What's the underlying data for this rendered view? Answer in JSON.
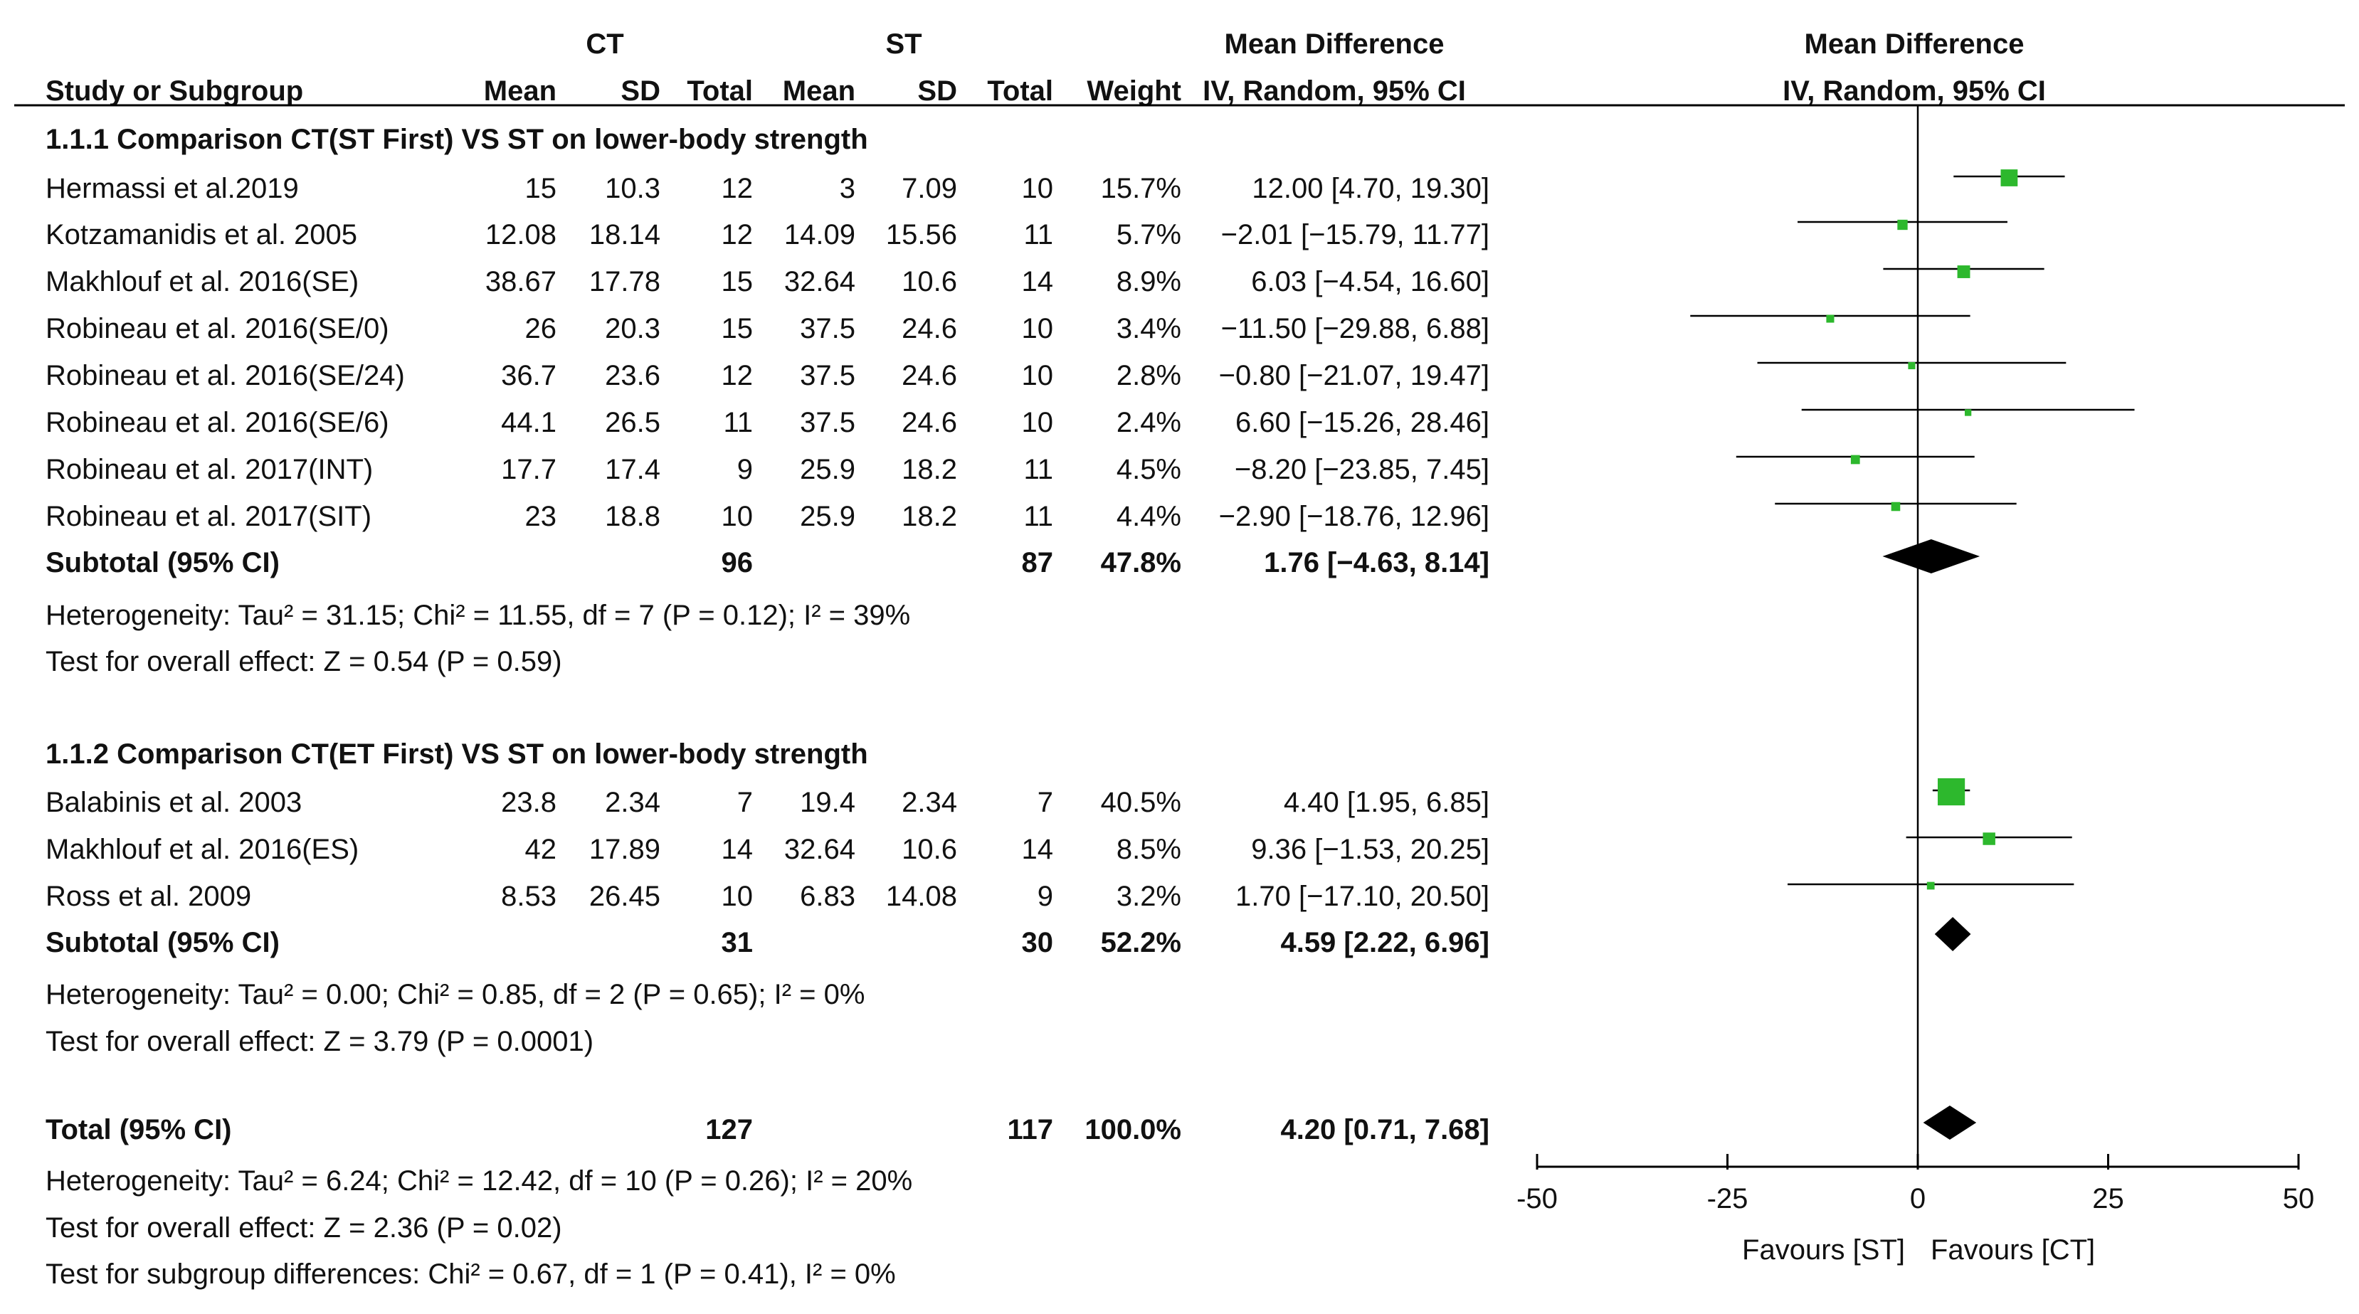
{
  "header": {
    "ct_group": "CT",
    "st_group": "ST",
    "md_title": "Mean Difference",
    "md_method": "IV, Random, 95% CI",
    "study_col": "Study or Subgroup",
    "mean": "Mean",
    "sd": "SD",
    "total": "Total",
    "weight": "Weight",
    "plot_title": "Mean Difference",
    "plot_method": "IV, Random, 95% CI"
  },
  "subgroups": [
    {
      "title": "1.1.1 Comparison CT(ST First) VS ST on lower-body strength",
      "studies": [
        {
          "name": "Hermassi et al.2019",
          "ct_mean": "15",
          "ct_sd": "10.3",
          "ct_total": "12",
          "st_mean": "3",
          "st_sd": "7.09",
          "st_total": "10",
          "weight": "15.7%",
          "ci_text": "12.00 [4.70, 19.30]"
        },
        {
          "name": "Kotzamanidis et al. 2005",
          "ct_mean": "12.08",
          "ct_sd": "18.14",
          "ct_total": "12",
          "st_mean": "14.09",
          "st_sd": "15.56",
          "st_total": "11",
          "weight": "5.7%",
          "ci_text": "−2.01 [−15.79, 11.77]"
        },
        {
          "name": "Makhlouf et al. 2016(SE)",
          "ct_mean": "38.67",
          "ct_sd": "17.78",
          "ct_total": "15",
          "st_mean": "32.64",
          "st_sd": "10.6",
          "st_total": "14",
          "weight": "8.9%",
          "ci_text": "6.03 [−4.54, 16.60]"
        },
        {
          "name": "Robineau et al. 2016(SE/0)",
          "ct_mean": "26",
          "ct_sd": "20.3",
          "ct_total": "15",
          "st_mean": "37.5",
          "st_sd": "24.6",
          "st_total": "10",
          "weight": "3.4%",
          "ci_text": "−11.50 [−29.88, 6.88]"
        },
        {
          "name": "Robineau et al. 2016(SE/24)",
          "ct_mean": "36.7",
          "ct_sd": "23.6",
          "ct_total": "12",
          "st_mean": "37.5",
          "st_sd": "24.6",
          "st_total": "10",
          "weight": "2.8%",
          "ci_text": "−0.80 [−21.07, 19.47]"
        },
        {
          "name": "Robineau et al. 2016(SE/6)",
          "ct_mean": "44.1",
          "ct_sd": "26.5",
          "ct_total": "11",
          "st_mean": "37.5",
          "st_sd": "24.6",
          "st_total": "10",
          "weight": "2.4%",
          "ci_text": "6.60 [−15.26, 28.46]"
        },
        {
          "name": "Robineau et al. 2017(INT)",
          "ct_mean": "17.7",
          "ct_sd": "17.4",
          "ct_total": "9",
          "st_mean": "25.9",
          "st_sd": "18.2",
          "st_total": "11",
          "weight": "4.5%",
          "ci_text": "−8.20 [−23.85, 7.45]"
        },
        {
          "name": "Robineau et al. 2017(SIT)",
          "ct_mean": "23",
          "ct_sd": "18.8",
          "ct_total": "10",
          "st_mean": "25.9",
          "st_sd": "18.2",
          "st_total": "11",
          "weight": "4.4%",
          "ci_text": "−2.90 [−18.76, 12.96]"
        }
      ],
      "subtotal": {
        "label": "Subtotal (95% CI)",
        "ct_total": "96",
        "st_total": "87",
        "weight": "47.8%",
        "ci_text": "1.76 [−4.63, 8.14]"
      },
      "heterogeneity": "Heterogeneity: Tau² = 31.15; Chi² = 11.55, df = 7 (P = 0.12); I² = 39%",
      "overall": "Test for overall effect: Z = 0.54 (P = 0.59)"
    },
    {
      "title": "1.1.2 Comparison CT(ET First) VS ST on lower-body strength",
      "studies": [
        {
          "name": "Balabinis et al. 2003",
          "ct_mean": "23.8",
          "ct_sd": "2.34",
          "ct_total": "7",
          "st_mean": "19.4",
          "st_sd": "2.34",
          "st_total": "7",
          "weight": "40.5%",
          "ci_text": "4.40 [1.95, 6.85]"
        },
        {
          "name": "Makhlouf et al. 2016(ES)",
          "ct_mean": "42",
          "ct_sd": "17.89",
          "ct_total": "14",
          "st_mean": "32.64",
          "st_sd": "10.6",
          "st_total": "14",
          "weight": "8.5%",
          "ci_text": "9.36 [−1.53, 20.25]"
        },
        {
          "name": "Ross et al. 2009",
          "ct_mean": "8.53",
          "ct_sd": "26.45",
          "ct_total": "10",
          "st_mean": "6.83",
          "st_sd": "14.08",
          "st_total": "9",
          "weight": "3.2%",
          "ci_text": "1.70 [−17.10, 20.50]"
        }
      ],
      "subtotal": {
        "label": "Subtotal (95% CI)",
        "ct_total": "31",
        "st_total": "30",
        "weight": "52.2%",
        "ci_text": "4.59 [2.22, 6.96]"
      },
      "heterogeneity": "Heterogeneity: Tau² = 0.00; Chi² = 0.85, df = 2 (P = 0.65); I² = 0%",
      "overall": "Test for overall effect: Z = 3.79 (P = 0.0001)"
    }
  ],
  "total": {
    "label": "Total (95% CI)",
    "ct_total": "127",
    "st_total": "117",
    "weight": "100.0%",
    "ci_text": "4.20 [0.71, 7.68]"
  },
  "total_heterogeneity": "Heterogeneity: Tau² = 6.24; Chi² = 12.42, df = 10 (P = 0.26); I² = 20%",
  "total_overall": "Test for overall effect: Z = 2.36 (P = 0.02)",
  "subgroup_differences": "Test for subgroup differences: Chi² = 0.67, df = 1 (P = 0.41), I² = 0%",
  "chart_data": {
    "type": "forest",
    "title": "Mean Difference",
    "subtitle": "IV, Random, 95% CI",
    "xlim": [
      -50,
      50
    ],
    "xticks": [
      -50,
      -25,
      0,
      25,
      50
    ],
    "xtick_labels": [
      "-50",
      "-25",
      "0",
      "25",
      "50"
    ],
    "favours_left": "Favours [ST]",
    "favours_right": "Favours [CT]",
    "study_color": "#2db82d",
    "summary_color": "#000000",
    "studies": [
      {
        "name": "Hermassi et al.2019",
        "md": 12.0,
        "lo": 4.7,
        "hi": 19.3,
        "weight": 15.7
      },
      {
        "name": "Kotzamanidis et al. 2005",
        "md": -2.01,
        "lo": -15.79,
        "hi": 11.77,
        "weight": 5.7
      },
      {
        "name": "Makhlouf et al. 2016(SE)",
        "md": 6.03,
        "lo": -4.54,
        "hi": 16.6,
        "weight": 8.9
      },
      {
        "name": "Robineau et al. 2016(SE/0)",
        "md": -11.5,
        "lo": -29.88,
        "hi": 6.88,
        "weight": 3.4
      },
      {
        "name": "Robineau et al. 2016(SE/24)",
        "md": -0.8,
        "lo": -21.07,
        "hi": 19.47,
        "weight": 2.8
      },
      {
        "name": "Robineau et al. 2016(SE/6)",
        "md": 6.6,
        "lo": -15.26,
        "hi": 28.46,
        "weight": 2.4
      },
      {
        "name": "Robineau et al. 2017(INT)",
        "md": -8.2,
        "lo": -23.85,
        "hi": 7.45,
        "weight": 4.5
      },
      {
        "name": "Robineau et al. 2017(SIT)",
        "md": -2.9,
        "lo": -18.76,
        "hi": 12.96,
        "weight": 4.4
      },
      {
        "name": "Balabinis et al. 2003",
        "md": 4.4,
        "lo": 1.95,
        "hi": 6.85,
        "weight": 40.5
      },
      {
        "name": "Makhlouf et al. 2016(ES)",
        "md": 9.36,
        "lo": -1.53,
        "hi": 20.25,
        "weight": 8.5
      },
      {
        "name": "Ross et al. 2009",
        "md": 1.7,
        "lo": -17.1,
        "hi": 20.5,
        "weight": 3.2
      }
    ],
    "summaries": [
      {
        "name": "Subtotal 1.1.1",
        "md": 1.76,
        "lo": -4.63,
        "hi": 8.14
      },
      {
        "name": "Subtotal 1.1.2",
        "md": 4.59,
        "lo": 2.22,
        "hi": 6.96
      },
      {
        "name": "Total",
        "md": 4.2,
        "lo": 0.71,
        "hi": 7.68
      }
    ]
  }
}
